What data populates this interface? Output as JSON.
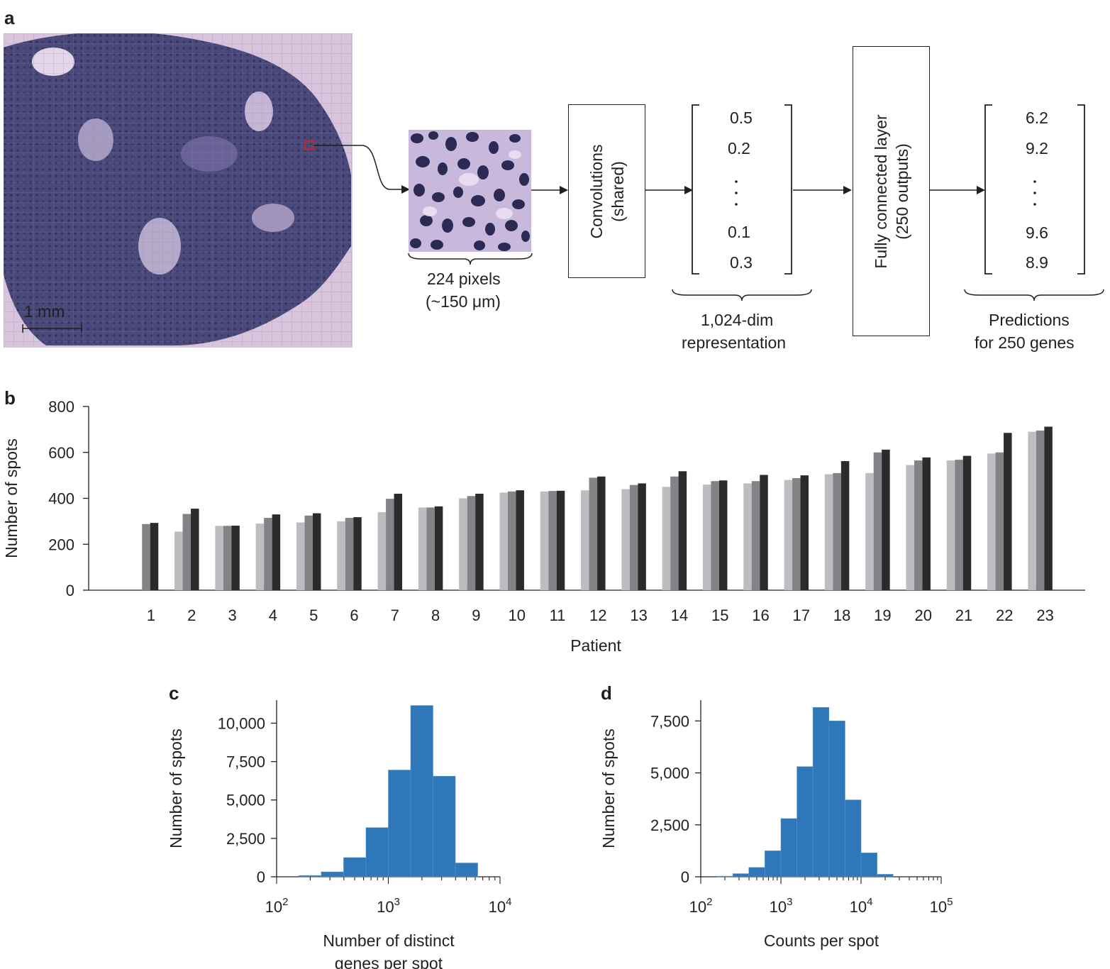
{
  "panel_a": {
    "letter": "a",
    "scale_bar": "1 mm",
    "patch_label_1": "224 pixels",
    "patch_label_2": "(~150 μm)",
    "conv_label_1": "Convolutions",
    "conv_label_2": "(shared)",
    "rep_values": [
      "0.5",
      "0.2",
      "0.1",
      "0.3"
    ],
    "rep_label_1": "1,024-dim",
    "rep_label_2": "representation",
    "fc_label_1": "Fully connected layer",
    "fc_label_2": "(250 outputs)",
    "pred_values": [
      "6.2",
      "9.2",
      "9.6",
      "8.9"
    ],
    "pred_label_1": "Predictions",
    "pred_label_2": "for 250 genes",
    "colors": {
      "tissue_bg": "#d9c6de",
      "tissue": "#3c3c6e",
      "highlight": "#e02020"
    }
  },
  "panel_b": {
    "letter": "b"
  },
  "panel_c": {
    "letter": "c"
  },
  "panel_d": {
    "letter": "d"
  },
  "chart_data": [
    {
      "id": "b",
      "type": "bar",
      "xlabel": "Patient",
      "ylabel": "Number of  spots",
      "ylim": [
        0,
        800
      ],
      "yticks": [
        0,
        200,
        400,
        600,
        800
      ],
      "categories": [
        "1",
        "2",
        "3",
        "4",
        "5",
        "6",
        "7",
        "8",
        "9",
        "10",
        "11",
        "12",
        "13",
        "14",
        "15",
        "16",
        "17",
        "18",
        "19",
        "20",
        "21",
        "22",
        "23"
      ],
      "series_colors": [
        "#bdbdc1",
        "#838387",
        "#2b2b2b"
      ],
      "series": [
        {
          "values": [
            null,
            255,
            280,
            290,
            295,
            300,
            340,
            360,
            400,
            425,
            430,
            435,
            440,
            450,
            460,
            465,
            480,
            505,
            510,
            545,
            565,
            595,
            690
          ]
        },
        {
          "values": [
            288,
            332,
            280,
            315,
            325,
            315,
            398,
            360,
            410,
            430,
            432,
            490,
            458,
            495,
            475,
            475,
            488,
            510,
            600,
            565,
            568,
            600,
            695
          ]
        },
        {
          "values": [
            293,
            355,
            281,
            330,
            335,
            318,
            420,
            365,
            420,
            435,
            433,
            495,
            465,
            518,
            478,
            502,
            500,
            562,
            612,
            578,
            585,
            685,
            712
          ]
        }
      ]
    },
    {
      "id": "c",
      "type": "bar",
      "xlabel_lines": [
        "Number of distinct",
        "genes per spot"
      ],
      "ylabel": "Number of  spots",
      "xscale": "log",
      "xlim": [
        100,
        10000
      ],
      "xticks": [
        "10^2",
        "10^3",
        "10^4"
      ],
      "ylim": [
        0,
        11500
      ],
      "yticks": [
        "0",
        "2,500",
        "5,000",
        "7,500",
        "10,000"
      ],
      "ytick_values": [
        0,
        2500,
        5000,
        7500,
        10000
      ],
      "color": "#2e77b8",
      "bin_edges": [
        100,
        158,
        251,
        398,
        631,
        1000,
        1585,
        2512,
        3981,
        6310,
        10000
      ],
      "values": [
        0,
        80,
        320,
        1250,
        3200,
        6950,
        11150,
        6550,
        900,
        0
      ]
    },
    {
      "id": "d",
      "type": "bar",
      "xlabel": "Counts per spot",
      "ylabel": "Number of  spots",
      "xscale": "log",
      "xlim": [
        100,
        100000
      ],
      "xticks": [
        "10^2",
        "10^3",
        "10^4",
        "10^5"
      ],
      "ylim": [
        0,
        8500
      ],
      "yticks": [
        "0",
        "2,500",
        "5,000",
        "7,500"
      ],
      "ytick_values": [
        0,
        2500,
        5000,
        7500
      ],
      "color": "#2e77b8",
      "bin_edges": [
        100,
        158,
        251,
        398,
        631,
        1000,
        1585,
        2512,
        3981,
        6310,
        10000,
        15849,
        25119,
        39811,
        63096,
        100000
      ],
      "values": [
        0,
        30,
        150,
        450,
        1250,
        2800,
        5300,
        8150,
        7500,
        3700,
        1150,
        120,
        0,
        0,
        0
      ]
    }
  ]
}
